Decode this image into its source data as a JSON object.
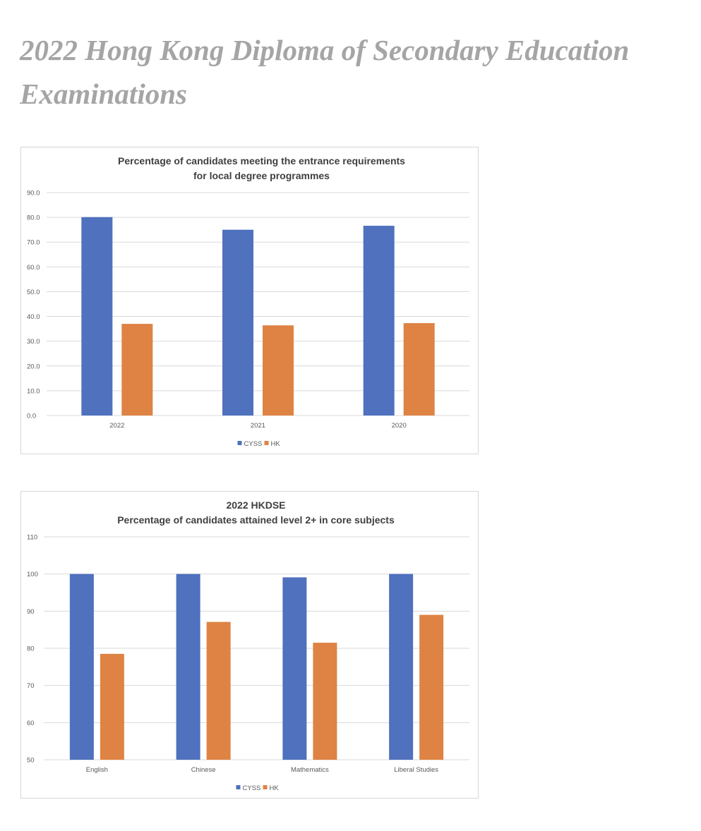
{
  "page": {
    "title": "2022 Hong Kong Diploma of Secondary Education Examinations"
  },
  "colors": {
    "CYSS": "#4f71be",
    "HK": "#de8344"
  },
  "chart_data": [
    {
      "type": "bar",
      "title": "Percentage of candidates meeting the entrance requirements",
      "subtitle": "for local degree programmes",
      "categories": [
        "2022",
        "2021",
        "2020"
      ],
      "series": [
        {
          "name": "CYSS",
          "values": [
            80.1,
            75.0,
            76.6
          ]
        },
        {
          "name": "HK",
          "values": [
            37.0,
            36.4,
            37.3
          ]
        }
      ],
      "ylim": [
        0,
        90
      ],
      "yticks": [
        "0.0",
        "10.0",
        "20.0",
        "30.0",
        "40.0",
        "50.0",
        "60.0",
        "70.0",
        "80.0",
        "90.0"
      ],
      "grid": true,
      "legend": "bottom"
    },
    {
      "type": "bar",
      "title": "2022 HKDSE",
      "subtitle": "Percentage of candidates attained level 2+ in core subjects",
      "categories": [
        "English",
        "Chinese",
        "Mathematics",
        "Liberal Studies"
      ],
      "series": [
        {
          "name": "CYSS",
          "values": [
            100,
            100,
            99.1,
            100
          ]
        },
        {
          "name": "HK",
          "values": [
            78.5,
            87.1,
            81.5,
            89.0
          ]
        }
      ],
      "ylim": [
        50,
        110
      ],
      "yticks": [
        "50",
        "60",
        "70",
        "80",
        "90",
        "100",
        "110"
      ],
      "grid": true,
      "legend": "bottom"
    }
  ]
}
